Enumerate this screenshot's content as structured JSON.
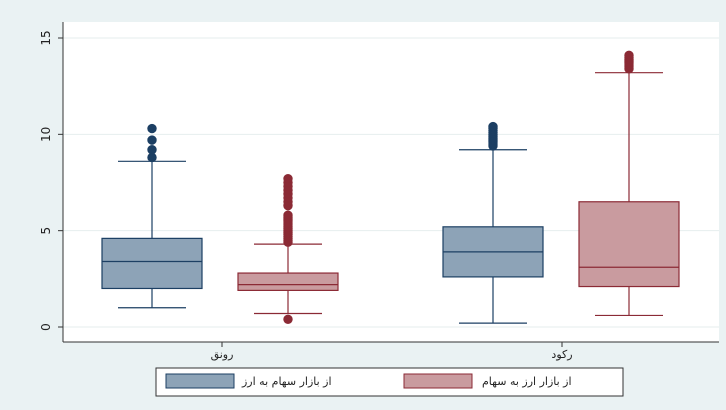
{
  "chart_data": {
    "type": "box",
    "categories": [
      "رونق",
      "رکود"
    ],
    "ylim": [
      0,
      15
    ],
    "yticks": [
      0,
      5,
      10,
      15
    ],
    "grid": true,
    "legend_position": "bottom",
    "series": [
      {
        "name": "از بازار سهام به ارز",
        "color": "#8da3b7",
        "stroke": "#1c3f63",
        "boxes": [
          {
            "whisker_low": 1.0,
            "q1": 2.0,
            "median": 3.4,
            "q3": 4.6,
            "whisker_high": 8.6,
            "outliers": [
              8.8,
              9.2,
              9.7,
              10.3
            ]
          },
          {
            "whisker_low": 0.2,
            "q1": 2.6,
            "median": 3.9,
            "q3": 5.2,
            "whisker_high": 9.2,
            "outliers": [
              9.4,
              9.5,
              9.6,
              9.7,
              9.8,
              9.9,
              10.0,
              10.1,
              10.2,
              10.3,
              10.4
            ]
          }
        ]
      },
      {
        "name": "از بازار ارز به سهام",
        "color": "#c99b9f",
        "stroke": "#8b2a35",
        "boxes": [
          {
            "whisker_low": 0.7,
            "q1": 1.9,
            "median": 2.2,
            "q3": 2.8,
            "whisker_high": 4.3,
            "outliers": [
              0.4,
              4.4,
              4.5,
              4.6,
              4.7,
              4.8,
              4.9,
              5.0,
              5.1,
              5.2,
              5.3,
              5.4,
              5.5,
              5.6,
              5.7,
              5.8,
              6.3,
              6.5,
              6.7,
              6.9,
              7.1,
              7.3,
              7.5,
              7.7
            ]
          },
          {
            "whisker_low": 0.6,
            "q1": 2.1,
            "median": 3.1,
            "q3": 6.5,
            "whisker_high": 13.2,
            "outliers": [
              13.4,
              13.5,
              13.6,
              13.7,
              13.8,
              13.9,
              14.0,
              14.1
            ]
          }
        ]
      }
    ]
  }
}
